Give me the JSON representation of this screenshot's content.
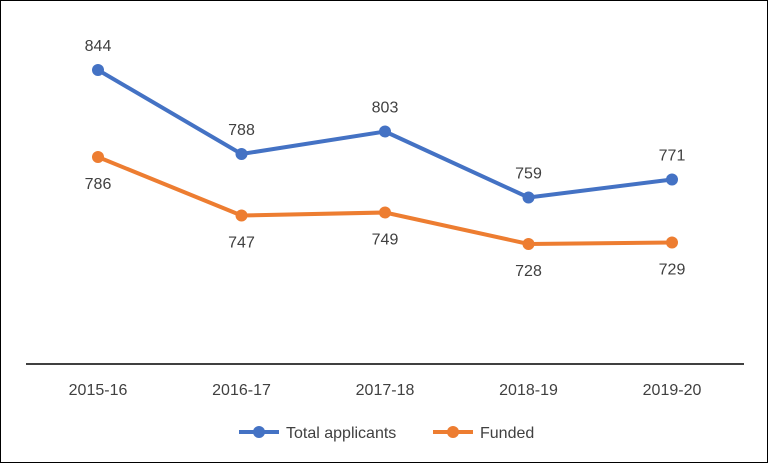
{
  "chart_data": {
    "type": "line",
    "title": "",
    "xlabel": "",
    "ylabel": "",
    "categories": [
      "2015-16",
      "2016-17",
      "2017-18",
      "2018-19",
      "2019-20"
    ],
    "series": [
      {
        "name": "Total applicants",
        "values": [
          844,
          788,
          803,
          759,
          771
        ],
        "color": "#4472c4",
        "labels": [
          "844",
          "788",
          "803",
          "759",
          "771"
        ]
      },
      {
        "name": "Funded",
        "values": [
          786,
          747,
          749,
          728,
          729
        ],
        "color": "#ed7d31",
        "labels": [
          "786",
          "747",
          "749",
          "728",
          "729"
        ]
      }
    ],
    "ylim": [
      650,
      870
    ],
    "grid": false,
    "legend": "bottom",
    "data_labels": true
  }
}
